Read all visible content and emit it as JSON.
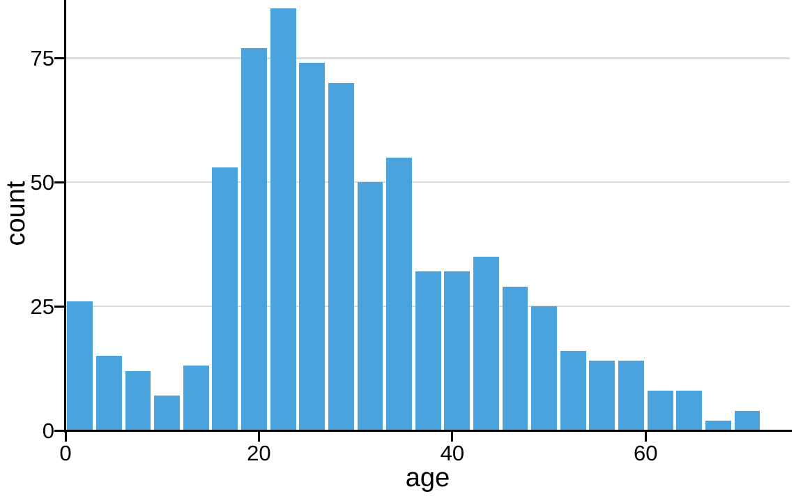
{
  "chart_data": {
    "type": "bar",
    "subtype": "histogram",
    "title": "",
    "xlabel": "age",
    "ylabel": "count",
    "bin_start": 0,
    "bin_width": 3,
    "categories": [
      "0-3",
      "3-6",
      "6-9",
      "9-12",
      "12-15",
      "15-18",
      "18-21",
      "21-24",
      "24-27",
      "27-30",
      "30-33",
      "33-36",
      "36-39",
      "39-42",
      "42-45",
      "45-48",
      "48-51",
      "51-54",
      "54-57",
      "57-60",
      "60-63",
      "63-66",
      "66-69",
      "69-72"
    ],
    "values": [
      26,
      15,
      12,
      7,
      13,
      53,
      77,
      85,
      74,
      70,
      50,
      55,
      32,
      32,
      35,
      29,
      25,
      16,
      14,
      14,
      8,
      8,
      2,
      4
    ],
    "x_ticks": [
      0,
      20,
      40,
      60
    ],
    "y_ticks": [
      0,
      25,
      50,
      75
    ],
    "xlim": [
      0,
      74.9
    ],
    "ylim": [
      0,
      86.7
    ],
    "grid": "horizontal-only",
    "legend": "none"
  },
  "colors": {
    "bar": "#4ba3de",
    "gridline": "#dcdcdc",
    "axis": "#000000",
    "text": "#000000",
    "background": "#ffffff"
  }
}
